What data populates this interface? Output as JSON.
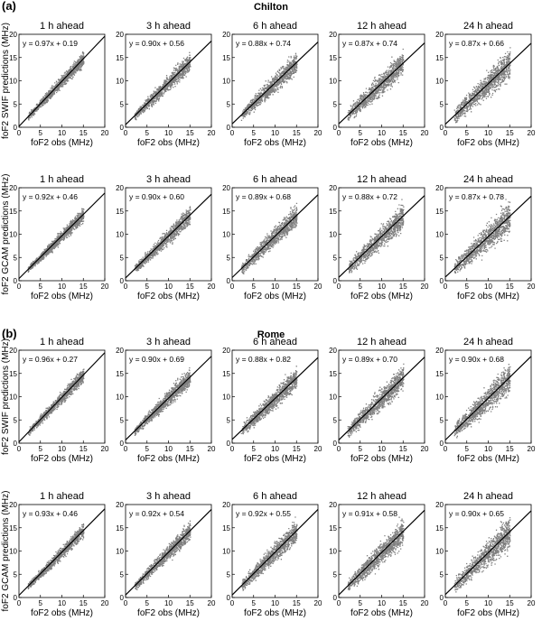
{
  "chart_data": {
    "type": "scatter",
    "panel_labels": [
      "(a)",
      "(b)"
    ],
    "station_titles": [
      "Chilton",
      "Rome"
    ],
    "column_titles": [
      "1 h ahead",
      "3 h ahead",
      "6 h ahead",
      "12 h ahead",
      "24 h ahead"
    ],
    "xlabel": "foF2 obs (MHz)",
    "xlim": [
      0,
      20
    ],
    "ylim": [
      0,
      20
    ],
    "xticks": [
      "0",
      "5",
      "10",
      "15",
      "20"
    ],
    "yticks": [
      "0",
      "5",
      "10",
      "15",
      "20"
    ],
    "point_color": "#808080",
    "line_color": "#000000",
    "rows": [
      {
        "station": "Chilton",
        "ylabel": "foF2 SWIF predictions (MHz)",
        "fits": [
          {
            "equation": "y = 0.97x + 0.19",
            "slope": 0.97,
            "intercept": 0.19
          },
          {
            "equation": "y = 0.90x + 0.56",
            "slope": 0.9,
            "intercept": 0.56
          },
          {
            "equation": "y = 0.88x + 0.74",
            "slope": 0.88,
            "intercept": 0.74
          },
          {
            "equation": "y = 0.87x + 0.74",
            "slope": 0.87,
            "intercept": 0.74
          },
          {
            "equation": "y = 0.87x + 0.66",
            "slope": 0.87,
            "intercept": 0.66
          }
        ]
      },
      {
        "station": "Chilton",
        "ylabel": "foF2 GCAM predictions (MHz)",
        "fits": [
          {
            "equation": "y = 0.92x + 0.46",
            "slope": 0.92,
            "intercept": 0.46
          },
          {
            "equation": "y = 0.90x + 0.60",
            "slope": 0.9,
            "intercept": 0.6
          },
          {
            "equation": "y = 0.89x + 0.68",
            "slope": 0.89,
            "intercept": 0.68
          },
          {
            "equation": "y = 0.88x + 0.72",
            "slope": 0.88,
            "intercept": 0.72
          },
          {
            "equation": "y = 0.87x + 0.78",
            "slope": 0.87,
            "intercept": 0.78
          }
        ]
      },
      {
        "station": "Rome",
        "ylabel": "foF2 SWIF predictions (MHz)",
        "fits": [
          {
            "equation": "y = 0.96x + 0.27",
            "slope": 0.96,
            "intercept": 0.27
          },
          {
            "equation": "y = 0.90x + 0.69",
            "slope": 0.9,
            "intercept": 0.69
          },
          {
            "equation": "y = 0.88x + 0.82",
            "slope": 0.88,
            "intercept": 0.82
          },
          {
            "equation": "y = 0.89x + 0.70",
            "slope": 0.89,
            "intercept": 0.7
          },
          {
            "equation": "y = 0.90x + 0.68",
            "slope": 0.9,
            "intercept": 0.68
          }
        ]
      },
      {
        "station": "Rome",
        "ylabel": "foF2 GCAM predictions (MHz)",
        "fits": [
          {
            "equation": "y = 0.93x + 0.46",
            "slope": 0.93,
            "intercept": 0.46
          },
          {
            "equation": "y = 0.92x + 0.54",
            "slope": 0.92,
            "intercept": 0.54
          },
          {
            "equation": "y = 0.92x + 0.55",
            "slope": 0.92,
            "intercept": 0.55
          },
          {
            "equation": "y = 0.91x + 0.58",
            "slope": 0.91,
            "intercept": 0.58
          },
          {
            "equation": "y = 0.90x + 0.65",
            "slope": 0.9,
            "intercept": 0.65
          }
        ]
      }
    ]
  }
}
